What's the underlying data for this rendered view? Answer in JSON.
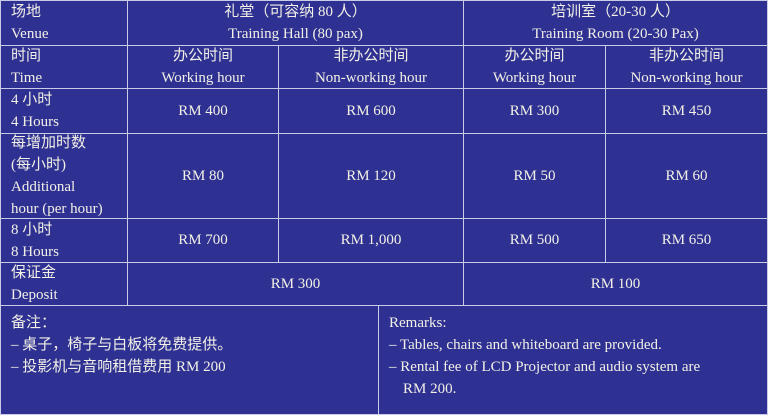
{
  "header": {
    "venue_zh": "场地",
    "venue_en": "Venue",
    "hall_zh": "礼堂（可容纳 80 人）",
    "hall_en": "Training Hall (80 pax)",
    "room_zh": "培训室（20-30 人）",
    "room_en": "Training Room (20-30 Pax)"
  },
  "time_row": {
    "label_zh": "时间",
    "label_en": "Time",
    "work_zh": "办公时间",
    "work_en": "Working hour",
    "nonwork_zh": "非办公时间",
    "nonwork_en": "Non-working hour"
  },
  "rows": [
    {
      "label_zh": "4 小时",
      "label_en": "4 Hours",
      "values": [
        "RM 400",
        "RM 600",
        "RM 300",
        "RM 450"
      ]
    },
    {
      "label_zh": "每增加时数",
      "label_zh2": "(每小时)",
      "label_en": "Additional",
      "label_en2": "hour (per hour)",
      "values": [
        "RM 80",
        "RM 120",
        "RM 50",
        "RM 60"
      ]
    },
    {
      "label_zh": "8 小时",
      "label_en": "8 Hours",
      "values": [
        "RM 700",
        "RM 1,000",
        "RM 500",
        "RM 650"
      ]
    }
  ],
  "deposit": {
    "label_zh": "保证金",
    "label_en": "Deposit",
    "hall": "RM 300",
    "room": "RM 100"
  },
  "remarks_zh": {
    "title": "备注：",
    "items": [
      "– 桌子，椅子与白板将免费提供。",
      "– 投影机与音响租借费用 RM 200"
    ]
  },
  "remarks_en": {
    "title": "Remarks:",
    "items": [
      "– Tables, chairs and whiteboard are provided.",
      "– Rental fee of LCD Projector and audio system are",
      "RM 200."
    ]
  }
}
